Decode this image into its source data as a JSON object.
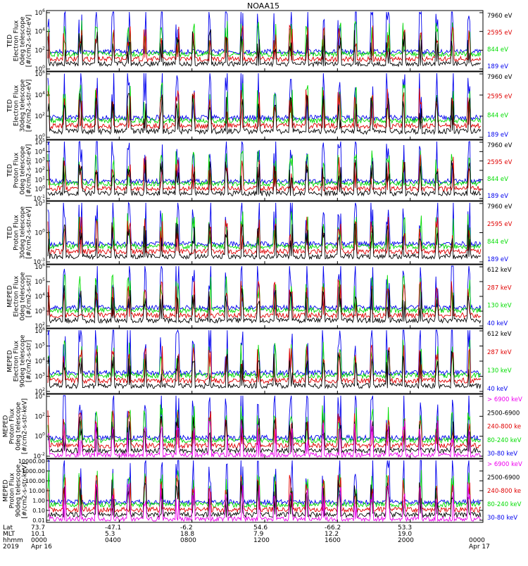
{
  "title": "NOAA15",
  "colors": {
    "black": "#000000",
    "red": "#e00000",
    "green": "#00dd00",
    "blue": "#0000ee",
    "magenta": "#ee00ee"
  },
  "chart_data": [
    {
      "type": "line",
      "ylabel": [
        "TED",
        "Electron Flux",
        "0deg telescope",
        "[#/cm2-s-str-eV]"
      ],
      "y_scale": "log",
      "yticks": [
        "10^6",
        "10^4",
        "10^2",
        "10^0"
      ],
      "legend": [
        {
          "label": "7960 eV",
          "color": "black"
        },
        {
          "label": "2595 eV",
          "color": "red"
        },
        {
          "label": "844 eV",
          "color": "green"
        },
        {
          "label": "189 eV",
          "color": "blue"
        }
      ]
    },
    {
      "type": "line",
      "ylabel": [
        "TED",
        "Electron Flux",
        "30deg telescope",
        "[#/cm2-s-str-eV]"
      ],
      "y_scale": "log",
      "yticks": [
        "10^6",
        "10^4",
        "10^2",
        "10^0"
      ],
      "legend": [
        {
          "label": "7960 eV",
          "color": "black"
        },
        {
          "label": "2595 eV",
          "color": "red"
        },
        {
          "label": "844 eV",
          "color": "green"
        },
        {
          "label": "189 eV",
          "color": "blue"
        }
      ]
    },
    {
      "type": "line",
      "ylabel": [
        "TED",
        "Proton Flux",
        "0deg telescope",
        "[#/cm2-s-str-eV]"
      ],
      "y_scale": "log",
      "yticks": [
        "10^5",
        "10^4",
        "10^3",
        "10^2",
        "10^1",
        "10^0",
        "10^-1"
      ],
      "legend": [
        {
          "label": "7960 eV",
          "color": "black"
        },
        {
          "label": "2595 eV",
          "color": "red"
        },
        {
          "label": "844 eV",
          "color": "green"
        },
        {
          "label": "189 eV",
          "color": "blue"
        }
      ]
    },
    {
      "type": "line",
      "ylabel": [
        "TED",
        "Proton Flux",
        "30deg telescope",
        "[#/cm2-s-str-eV]"
      ],
      "y_scale": "log",
      "yticks": [
        "10^3",
        "10^0",
        "10^-3"
      ],
      "legend": [
        {
          "label": "7960 eV",
          "color": "black"
        },
        {
          "label": "2595 eV",
          "color": "red"
        },
        {
          "label": "844 eV",
          "color": "green"
        },
        {
          "label": "189 eV",
          "color": "blue"
        }
      ]
    },
    {
      "type": "line",
      "ylabel": [
        "MEPED",
        "Electron Flux",
        "0deg telescope",
        "[#/cm2-s-str]"
      ],
      "y_scale": "log",
      "yticks": [
        "10^6",
        "10^5",
        "10^4",
        "10^3",
        "10^2"
      ],
      "legend": [
        {
          "label": "612 keV",
          "color": "black"
        },
        {
          "label": "287 keV",
          "color": "red"
        },
        {
          "label": "130 keV",
          "color": "green"
        },
        {
          "label": "40 keV",
          "color": "blue"
        }
      ]
    },
    {
      "type": "line",
      "ylabel": [
        "MEPED",
        "Electron Flux",
        "90deg telescope",
        "[#/cm2-s-str]"
      ],
      "y_scale": "log",
      "yticks": [
        "10^6",
        "10^5",
        "10^4",
        "10^3",
        "10^2"
      ],
      "legend": [
        {
          "label": "612 keV",
          "color": "black"
        },
        {
          "label": "287 keV",
          "color": "red"
        },
        {
          "label": "130 keV",
          "color": "green"
        },
        {
          "label": "40 keV",
          "color": "blue"
        }
      ]
    },
    {
      "type": "line",
      "ylabel": [
        "MEPED",
        "Proton Flux",
        "0deg telescope",
        "[#/cm2-s-str-keV]"
      ],
      "y_scale": "log",
      "yticks": [
        "10^4",
        "10^2",
        "10^0",
        "10^-2"
      ],
      "legend": [
        {
          "label": "> 6900 keV",
          "color": "magenta"
        },
        {
          "label": "2500-6900",
          "color": "black"
        },
        {
          "label": "240-800 ke",
          "color": "red"
        },
        {
          "label": "80-240 keV",
          "color": "green"
        },
        {
          "label": "30-80 keV",
          "color": "blue"
        }
      ]
    },
    {
      "type": "line",
      "ylabel": [
        "MEPED",
        "Proton Flux",
        "90deg telescope",
        "[#/cm2-s-str-keV]"
      ],
      "y_scale": "log",
      "yticks": [
        "10000.00",
        "1000.00",
        "100.00",
        "10.00",
        "1.00",
        "0.10",
        "0.01"
      ],
      "legend": [
        {
          "label": "> 6900 keV",
          "color": "magenta"
        },
        {
          "label": "2500-6900",
          "color": "black"
        },
        {
          "label": "240-800 ke",
          "color": "red"
        },
        {
          "label": "80-240 keV",
          "color": "green"
        },
        {
          "label": "30-80 keV",
          "color": "blue"
        }
      ]
    }
  ],
  "xaxis": {
    "row_labels": [
      "Lat",
      "MLT",
      "hhmm",
      "2019"
    ],
    "columns": [
      {
        "lat": "73.7",
        "mlt": "10.1",
        "hhmm": "0000",
        "date": "Apr 16"
      },
      {
        "lat": "-47.1",
        "mlt": "5.3",
        "hhmm": "0400",
        "date": ""
      },
      {
        "lat": "-6.2",
        "mlt": "18.8",
        "hhmm": "0800",
        "date": ""
      },
      {
        "lat": "54.6",
        "mlt": "7.9",
        "hhmm": "1200",
        "date": ""
      },
      {
        "lat": "-66.2",
        "mlt": "12.2",
        "hhmm": "1600",
        "date": ""
      },
      {
        "lat": "53.3",
        "mlt": "19.0",
        "hhmm": "2000",
        "date": ""
      },
      {
        "lat": "",
        "mlt": "",
        "hhmm": "0000",
        "date": "Apr 17"
      }
    ]
  }
}
